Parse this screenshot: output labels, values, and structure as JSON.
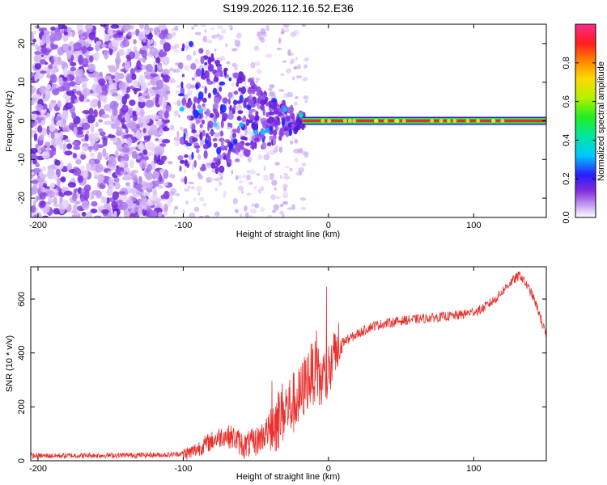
{
  "title": "S199.2026.112.16.52.E36",
  "chart_data": [
    {
      "type": "heatmap",
      "name": "spectrogram",
      "xlabel": "Height of straight line (km)",
      "ylabel": "Frequency (Hz)",
      "xlim": [
        -205,
        150
      ],
      "ylim": [
        -25,
        25
      ],
      "xticks": [
        -200,
        -100,
        0,
        100
      ],
      "yticks": [
        -20,
        -10,
        0,
        10,
        20
      ],
      "carrier_frequency": 0,
      "colorbar": {
        "label": "Normalized spectral amplitude",
        "range": [
          0,
          1
        ],
        "ticks": [
          0.0,
          0.2,
          0.4,
          0.6,
          0.8
        ]
      }
    },
    {
      "type": "line",
      "name": "snr",
      "xlabel": "Height of straight line (km)",
      "ylabel": "SNR (10 * v/v)",
      "xlim": [
        -205,
        150
      ],
      "ylim": [
        0,
        720
      ],
      "xticks": [
        -200,
        -100,
        0,
        100
      ],
      "yticks": [
        0,
        200,
        400,
        600
      ],
      "color": "#e8302c",
      "series_envelope": {
        "x": [
          -205,
          -150,
          -110,
          -95,
          -80,
          -72,
          -65,
          -58,
          -50,
          -40,
          -30,
          -20,
          -15,
          -10,
          -5,
          0,
          5,
          10,
          20,
          30,
          50,
          70,
          90,
          105,
          115,
          125,
          132,
          140,
          145,
          150
        ],
        "y": [
          18,
          20,
          22,
          30,
          75,
          95,
          85,
          55,
          70,
          120,
          190,
          230,
          300,
          330,
          290,
          330,
          380,
          440,
          470,
          500,
          520,
          530,
          540,
          560,
          600,
          660,
          690,
          620,
          550,
          460
        ]
      }
    }
  ]
}
